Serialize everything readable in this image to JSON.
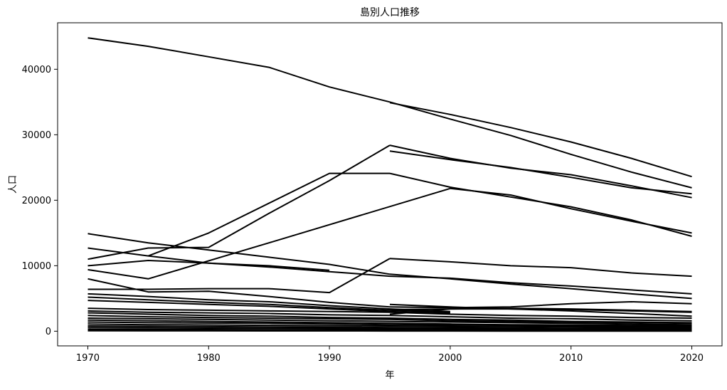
{
  "chart_data": {
    "type": "line",
    "title": "島別人口推移",
    "xlabel": "年",
    "ylabel": "人口",
    "xlim": [
      1967.5,
      2022.5
    ],
    "ylim": [
      -2240,
      47100
    ],
    "x_ticks": [
      1970,
      1980,
      1990,
      2000,
      2010,
      2020
    ],
    "y_ticks": [
      0,
      10000,
      20000,
      30000,
      40000
    ],
    "grid": false,
    "legend": "none",
    "line_color": "#000000",
    "series": [
      {
        "x": [
          1970,
          1975,
          1980,
          1985,
          1990,
          1995
        ],
        "values": [
          44800,
          43500,
          41900,
          40300,
          37300,
          35000
        ]
      },
      {
        "x": [
          1995,
          2000,
          2005,
          2010,
          2015,
          2020
        ],
        "values": [
          35000,
          32400,
          29900,
          27000,
          24300,
          21900
        ]
      },
      {
        "x": [
          1995,
          2000,
          2005,
          2010,
          2015,
          2020
        ],
        "values": [
          34900,
          33100,
          31100,
          28900,
          26400,
          23600
        ]
      },
      {
        "x": [
          1970,
          1975,
          1980,
          1985,
          1990,
          1995
        ],
        "values": [
          11000,
          12700,
          12800,
          18000,
          23000,
          28400
        ]
      },
      {
        "x": [
          1995,
          2000,
          2005,
          2010,
          2015,
          2020
        ],
        "values": [
          28400,
          26400,
          24900,
          23900,
          22200,
          20400
        ]
      },
      {
        "x": [
          1995,
          2000,
          2005,
          2010,
          2015,
          2020
        ],
        "values": [
          27500,
          26200,
          25000,
          23500,
          21900,
          21000
        ]
      },
      {
        "x": [
          1975,
          1980,
          1990,
          1995
        ],
        "values": [
          11500,
          15000,
          24100,
          24100
        ]
      },
      {
        "x": [
          1995,
          2000,
          2005,
          2010,
          2015,
          2020
        ],
        "values": [
          24100,
          22000,
          20500,
          19000,
          17000,
          14500
        ]
      },
      {
        "x": [
          1970,
          1975,
          1985,
          2000
        ],
        "values": [
          9400,
          8000,
          13500,
          21800
        ]
      },
      {
        "x": [
          2000,
          2005,
          2010,
          2015,
          2020
        ],
        "values": [
          21800,
          20800,
          18700,
          16800,
          15000
        ]
      },
      {
        "x": [
          1970,
          1975,
          1980,
          1985,
          1990,
          1995
        ],
        "values": [
          14900,
          13500,
          12400,
          11300,
          10200,
          8700
        ]
      },
      {
        "x": [
          1995,
          2000,
          2005,
          2010,
          2015,
          2020
        ],
        "values": [
          8700,
          8000,
          7200,
          6500,
          5700,
          5000
        ]
      },
      {
        "x": [
          1970,
          1975,
          1980,
          1985,
          1990,
          1995
        ],
        "values": [
          12700,
          11500,
          10400,
          9800,
          9100,
          8400
        ]
      },
      {
        "x": [
          1995,
          2000,
          2005,
          2010,
          2015,
          2020
        ],
        "values": [
          8400,
          8100,
          7400,
          6900,
          6300,
          5700
        ]
      },
      {
        "x": [
          1970,
          1975,
          1980,
          1985,
          1990
        ],
        "values": [
          10000,
          10800,
          10400,
          10000,
          9300
        ]
      },
      {
        "x": [
          1970,
          1975,
          1980,
          1985,
          1990,
          1995
        ],
        "values": [
          6400,
          6400,
          6500,
          6500,
          5900,
          11100
        ]
      },
      {
        "x": [
          1995,
          2000,
          2005,
          2010,
          2015,
          2020
        ],
        "values": [
          11100,
          10600,
          10000,
          9700,
          8900,
          8400
        ]
      },
      {
        "x": [
          1970,
          1975,
          1980,
          1985,
          1990,
          1995
        ],
        "values": [
          8000,
          6000,
          6100,
          5300,
          4400,
          3700
        ]
      },
      {
        "x": [
          1970,
          1975,
          1980,
          1985,
          1990,
          1995,
          2000
        ],
        "values": [
          5700,
          5300,
          4800,
          4500,
          3900,
          3400,
          3000
        ]
      },
      {
        "x": [
          1970,
          1975,
          1980,
          1985,
          1990,
          1995,
          2000
        ],
        "values": [
          5200,
          4800,
          4400,
          4100,
          3600,
          3200,
          2900
        ]
      },
      {
        "x": [
          1970,
          1975,
          1980,
          1985,
          1990,
          1995,
          2000
        ],
        "values": [
          4700,
          4400,
          4100,
          3800,
          3400,
          3000,
          2700
        ]
      },
      {
        "x": [
          1995,
          2000,
          2005,
          2010,
          2015,
          2020
        ],
        "values": [
          4100,
          3700,
          3400,
          3100,
          2700,
          2300
        ]
      },
      {
        "x": [
          1995,
          2000,
          2005,
          2010,
          2015,
          2020
        ],
        "values": [
          3700,
          3600,
          3700,
          4200,
          4500,
          4200
        ]
      },
      {
        "x": [
          1995,
          2000,
          2005,
          2010,
          2015,
          2020
        ],
        "values": [
          3300,
          3400,
          3500,
          3400,
          3200,
          3000
        ]
      },
      {
        "x": [
          1995,
          2000,
          2005,
          2010,
          2015,
          2020
        ],
        "values": [
          2600,
          3400,
          3400,
          3300,
          3100,
          2900
        ]
      },
      {
        "x": [
          1970,
          1975,
          1980,
          1985,
          1990,
          1995,
          2000,
          2005,
          2010,
          2015,
          2020
        ],
        "values": [
          3500,
          3300,
          3200,
          3100,
          3000,
          2900,
          2600,
          2400,
          2300,
          2100,
          2000
        ]
      },
      {
        "x": [
          1970,
          1975,
          1980,
          1985,
          1990,
          1995,
          2000,
          2005,
          2010,
          2015,
          2020
        ],
        "values": [
          3100,
          2900,
          2800,
          2700,
          2500,
          2400,
          2200,
          2000,
          1900,
          1700,
          1600
        ]
      },
      {
        "x": [
          1970,
          1975,
          1980,
          1985,
          1990,
          1995,
          2000,
          2005,
          2010,
          2015,
          2020
        ],
        "values": [
          2800,
          2600,
          2400,
          2300,
          2100,
          2000,
          1800,
          1700,
          1500,
          1400,
          1300
        ]
      },
      {
        "x": [
          1970,
          1975,
          1980,
          1985,
          1990,
          1995,
          2000,
          2005,
          2010,
          2015,
          2020
        ],
        "values": [
          2400,
          2200,
          2100,
          2000,
          1900,
          1800,
          1600,
          1500,
          1400,
          1300,
          1200
        ]
      },
      {
        "x": [
          1970,
          1975,
          1980,
          1985,
          1990,
          1995,
          2000,
          2005,
          2010,
          2015,
          2020
        ],
        "values": [
          2000,
          1900,
          1800,
          1700,
          1600,
          1500,
          1400,
          1300,
          1200,
          1100,
          1000
        ]
      },
      {
        "x": [
          1970,
          1975,
          1980,
          1985,
          1990,
          1995,
          2000,
          2005,
          2010,
          2015,
          2020
        ],
        "values": [
          1700,
          1600,
          1500,
          1400,
          1300,
          1200,
          1100,
          1000,
          950,
          900,
          850
        ]
      },
      {
        "x": [
          1970,
          1975,
          1980,
          1985,
          1990,
          1995,
          2000,
          2005,
          2010,
          2015,
          2020
        ],
        "values": [
          1400,
          1300,
          1250,
          1200,
          1100,
          1000,
          950,
          900,
          800,
          750,
          700
        ]
      },
      {
        "x": [
          1970,
          1975,
          1980,
          1985,
          1990,
          1995,
          2000,
          2005,
          2010,
          2015,
          2020
        ],
        "values": [
          1100,
          1000,
          950,
          900,
          850,
          800,
          750,
          700,
          650,
          600,
          550
        ]
      },
      {
        "x": [
          1970,
          1975,
          1980,
          1985,
          1990,
          1995,
          2000,
          2005,
          2010,
          2015,
          2020
        ],
        "values": [
          800,
          750,
          700,
          650,
          620,
          580,
          540,
          500,
          460,
          420,
          380
        ]
      },
      {
        "x": [
          1970,
          1975,
          1980,
          1985,
          1990,
          1995,
          2000,
          2005,
          2010,
          2015,
          2020
        ],
        "values": [
          550,
          520,
          480,
          450,
          420,
          400,
          370,
          340,
          310,
          280,
          250
        ]
      },
      {
        "x": [
          1970,
          1975,
          1980,
          1985,
          1990,
          1995,
          2000,
          2005,
          2010,
          2015,
          2020
        ],
        "values": [
          300,
          280,
          260,
          240,
          220,
          200,
          190,
          170,
          150,
          140,
          120
        ]
      },
      {
        "x": [
          1970,
          1975,
          1980,
          1985,
          1990,
          1995,
          2000,
          2005,
          2010,
          2015,
          2020
        ],
        "values": [
          150,
          140,
          130,
          120,
          110,
          100,
          90,
          80,
          70,
          60,
          50
        ]
      },
      {
        "x": [
          1970,
          1975,
          1980,
          1985,
          1990,
          1995,
          2000,
          2005,
          2010,
          2015,
          2020
        ],
        "values": [
          60,
          55,
          50,
          45,
          40,
          35,
          30,
          25,
          20,
          15,
          10
        ]
      }
    ]
  }
}
